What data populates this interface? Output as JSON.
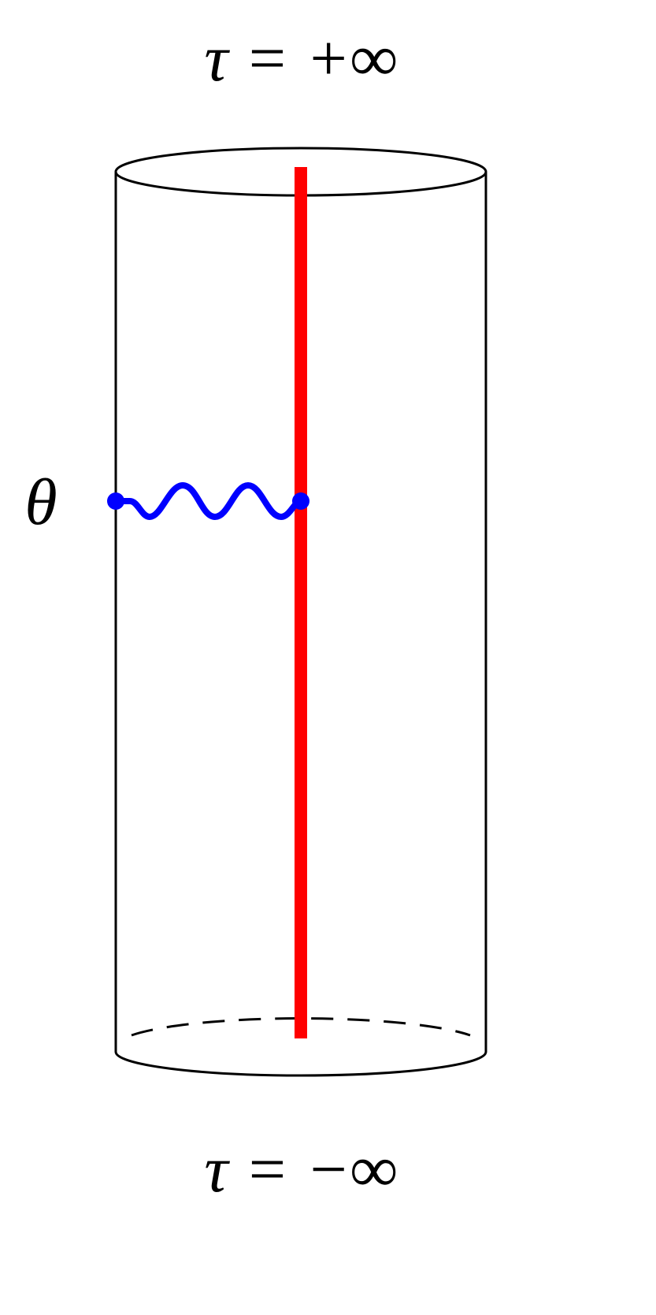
{
  "labels": {
    "top": "τ = +∞",
    "left": "θ",
    "bottom": "τ = −∞"
  }
}
